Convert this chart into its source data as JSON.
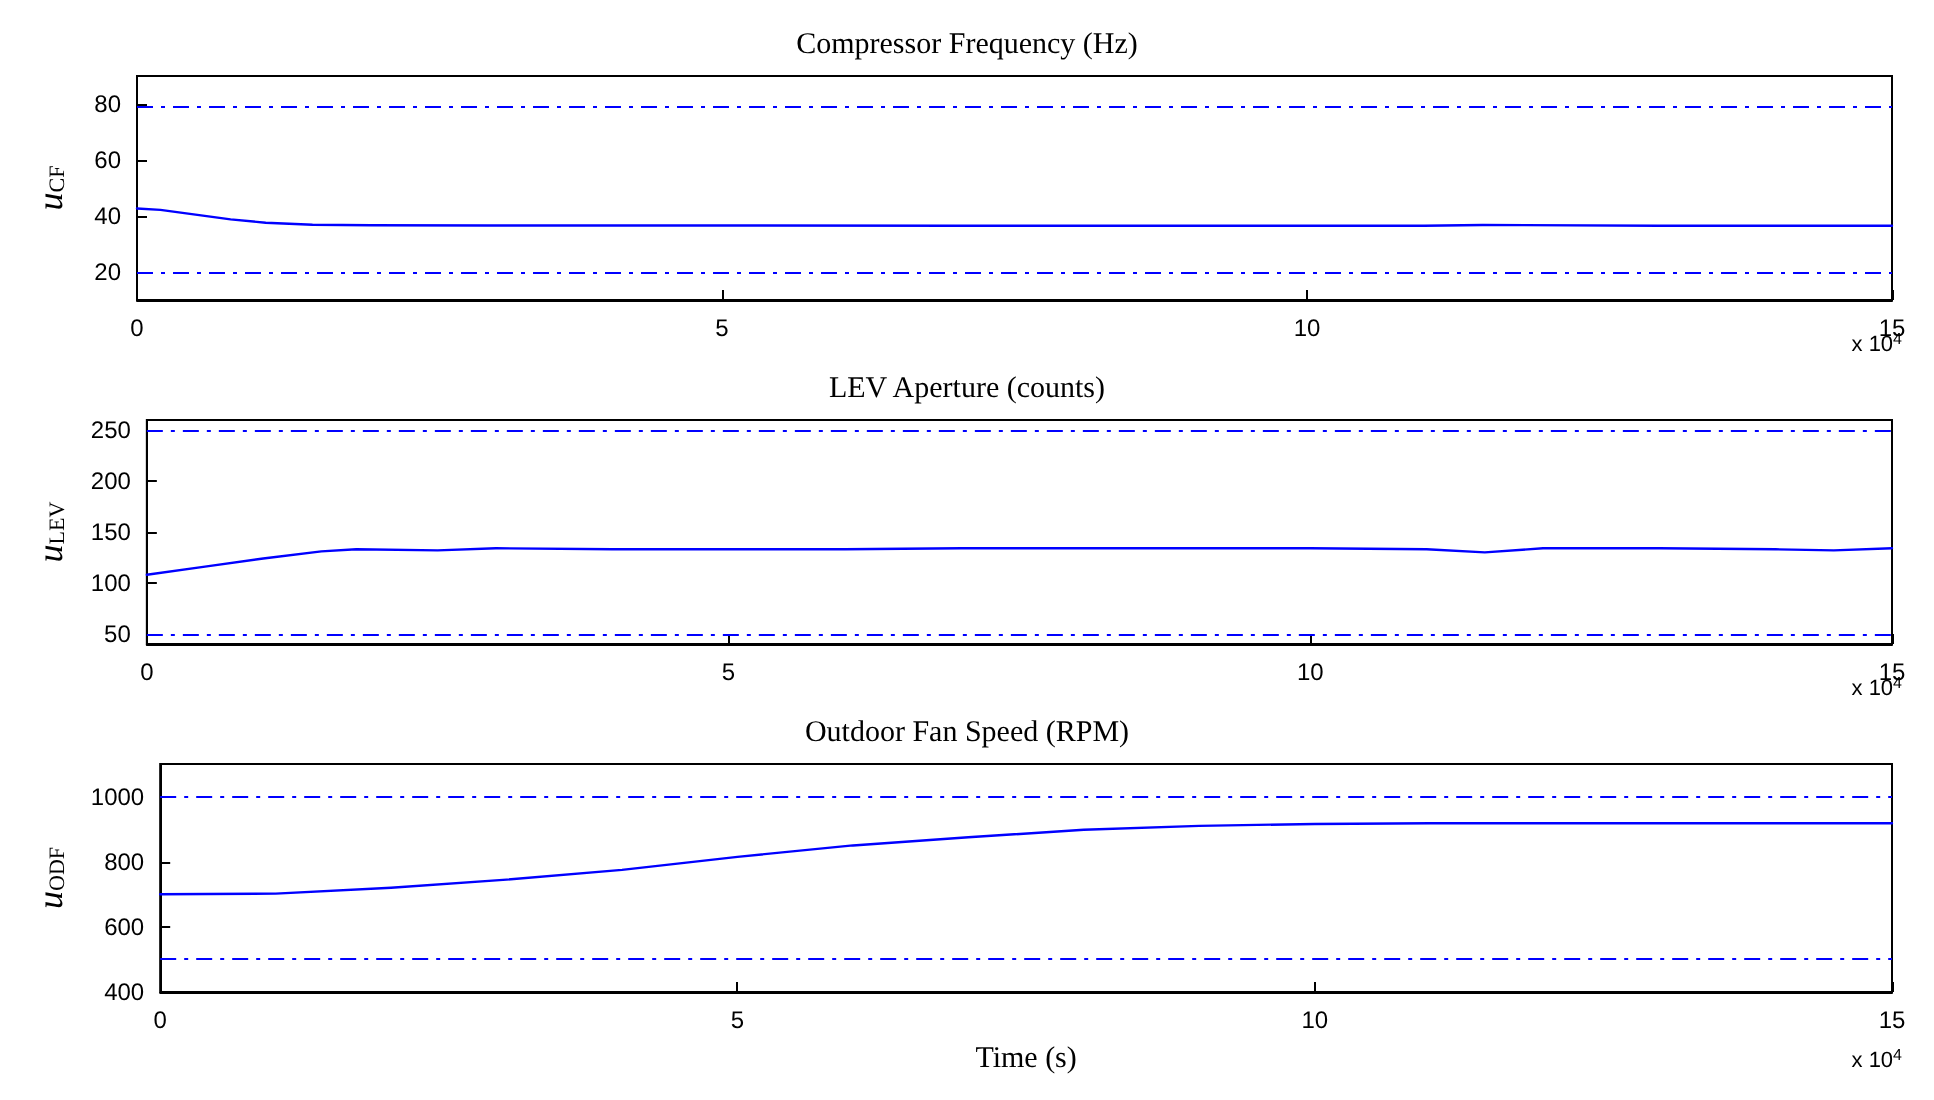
{
  "chart_data": [
    {
      "type": "line",
      "title": "Compressor Frequency (Hz)",
      "ylabel": "u$_{CF}$",
      "xlim": [
        0,
        15
      ],
      "xticks": [
        0,
        5,
        10,
        15
      ],
      "ylim": [
        10,
        90
      ],
      "yticks": [
        20,
        40,
        60,
        80
      ],
      "line_style": "solid",
      "marker": "none",
      "series": [
        {
          "color": "#0000ff",
          "x": [
            0,
            0.2,
            0.5,
            0.8,
            1.1,
            1.5,
            2,
            3,
            5,
            7,
            9,
            11,
            11.5,
            13,
            15
          ],
          "values": [
            42.7,
            42.2,
            40.5,
            38.8,
            37.6,
            36.9,
            36.7,
            36.6,
            36.6,
            36.5,
            36.5,
            36.5,
            36.8,
            36.5,
            36.5
          ]
        }
      ],
      "ref_lines": [
        {
          "axis": "y",
          "value": 79,
          "color": "#0000ff",
          "line_style": "dashed"
        },
        {
          "axis": "y",
          "value": 20,
          "color": "#0000ff",
          "line_style": "dashed"
        }
      ],
      "annotations": [
        "x 10$^{4}$"
      ]
    },
    {
      "type": "line",
      "title": "LEV Aperture (counts)",
      "ylabel": "u$_{LEV}$",
      "xlim": [
        0,
        15
      ],
      "xticks": [
        0,
        5,
        10,
        15
      ],
      "ylim": [
        40,
        260
      ],
      "yticks": [
        50,
        100,
        150,
        200,
        250
      ],
      "line_style": "solid",
      "marker": "none",
      "series": [
        {
          "color": "#0000ff",
          "x": [
            0,
            0.5,
            1,
            1.5,
            1.8,
            2.5,
            3,
            4,
            5,
            6,
            7,
            8,
            9,
            10,
            11,
            11.5,
            12,
            13,
            14,
            14.5,
            15
          ],
          "values": [
            108,
            116,
            124,
            131,
            133,
            132,
            134,
            133,
            133,
            133,
            134,
            134,
            134,
            134,
            133,
            130,
            134,
            134,
            133,
            132,
            134
          ]
        }
      ],
      "ref_lines": [
        {
          "axis": "y",
          "value": 250,
          "color": "#0000ff",
          "line_style": "dashed"
        },
        {
          "axis": "y",
          "value": 50,
          "color": "#0000ff",
          "line_style": "dashed"
        }
      ],
      "annotations": [
        "x 10$^{4}$"
      ]
    },
    {
      "type": "line",
      "title": "Outdoor Fan Speed (RPM)",
      "xlabel": "Time (s)",
      "ylabel": "u$_{ODF}$",
      "xlim": [
        0,
        15
      ],
      "xticks": [
        0,
        5,
        10,
        15
      ],
      "ylim": [
        400,
        1100
      ],
      "yticks": [
        400,
        600,
        800,
        1000
      ],
      "line_style": "solid",
      "marker": "none",
      "series": [
        {
          "color": "#0000ff",
          "x": [
            0,
            1,
            2,
            3,
            4,
            5,
            6,
            7,
            8,
            9,
            10,
            11,
            12,
            13,
            14,
            15
          ],
          "values": [
            700,
            702,
            720,
            745,
            775,
            815,
            850,
            875,
            898,
            910,
            916,
            918,
            918,
            918,
            918,
            918
          ]
        }
      ],
      "ref_lines": [
        {
          "axis": "y",
          "value": 1000,
          "color": "#0000ff",
          "line_style": "dashed"
        },
        {
          "axis": "y",
          "value": 500,
          "color": "#0000ff",
          "line_style": "dashed"
        }
      ],
      "annotations": [
        "x 10$^{4}$"
      ]
    }
  ]
}
